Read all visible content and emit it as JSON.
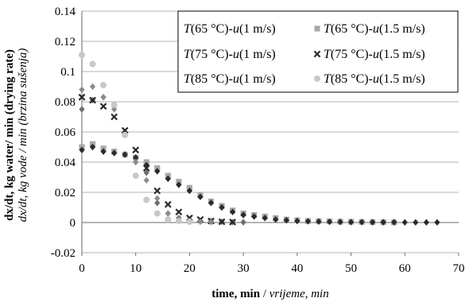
{
  "chart_data": {
    "type": "scatter",
    "title": "",
    "xlabel_bold": "time, min",
    "xlabel_sep": " / ",
    "xlabel_italic": "vrijeme, min",
    "ylabel_bold": "dx/dt, kg water/ min (drying rate)",
    "ylabel_italic": "dx/dt, kg vode / min (brzina sušenja)",
    "xlim": [
      0,
      70
    ],
    "ylim": [
      -0.02,
      0.14
    ],
    "xticks": [
      0,
      10,
      20,
      30,
      40,
      50,
      60,
      70
    ],
    "xtick_labels": [
      "0",
      "10",
      "20",
      "30",
      "40",
      "50",
      "60",
      "70"
    ],
    "yticks": [
      -0.02,
      0,
      0.02,
      0.04,
      0.06,
      0.08,
      0.1,
      0.12,
      0.14
    ],
    "ytick_labels": [
      "-0.02",
      "0",
      "0.02",
      "0.04",
      "0.06",
      "0.08",
      "0.1",
      "0.12",
      "0.14"
    ],
    "grid": "horizontal",
    "legend_position": "top-right",
    "series": [
      {
        "name": "T(65 °C)-u(1 m/s)",
        "name_T": "T",
        "name_mid": "(65 °C)-",
        "name_u": "u",
        "name_end": "(1 m/s)",
        "marker": "diamond",
        "color": "#6e6e6e",
        "x": [
          0,
          2,
          4,
          6,
          8,
          10,
          12,
          14,
          16,
          18,
          20,
          22,
          24,
          26,
          28,
          30
        ],
        "y": [
          0.075,
          0.081,
          0.083,
          0.077,
          0.06,
          0.043,
          0.033,
          0.013,
          0.006,
          0.003,
          0.002,
          0.001,
          0.001,
          0.0005,
          0.0003,
          0.0002
        ]
      },
      {
        "name": "T(65 °C)-u(1.5 m/s)",
        "name_T": "T",
        "name_mid": "(65 °C)-",
        "name_u": "u",
        "name_end": "(1.5 m/s)",
        "marker": "square",
        "color": "#a9a9a9",
        "x": [
          0,
          2,
          4,
          6,
          8,
          10,
          12,
          14,
          16,
          18,
          20,
          22,
          24,
          26,
          28,
          30,
          32,
          34,
          36,
          38,
          40,
          42,
          44,
          46,
          48,
          50,
          52,
          54,
          56,
          58
        ],
        "y": [
          0.05,
          0.052,
          0.049,
          0.047,
          0.045,
          0.043,
          0.04,
          0.036,
          0.031,
          0.027,
          0.023,
          0.018,
          0.014,
          0.011,
          0.008,
          0.006,
          0.005,
          0.004,
          0.003,
          0.002,
          0.0015,
          0.001,
          0.001,
          0.0008,
          0.0006,
          0.0005,
          0.0004,
          0.0003,
          0.0002,
          0.0001
        ]
      },
      {
        "name": "T(75 °C)-u(1 m/s)",
        "name_T": "T",
        "name_mid": "(75 °C)-",
        "name_u": "u",
        "name_end": "(1 m/s)",
        "marker": "diamond",
        "color": "#2a2a2a",
        "x": [
          0,
          2,
          4,
          6,
          8,
          10,
          12,
          14,
          16,
          18,
          20,
          22,
          24,
          26,
          28,
          30,
          32,
          34,
          36,
          38,
          40,
          42,
          44,
          46,
          48,
          50,
          52,
          54,
          56,
          58,
          60,
          62,
          64,
          66
        ],
        "y": [
          0.048,
          0.05,
          0.047,
          0.046,
          0.045,
          0.043,
          0.038,
          0.034,
          0.029,
          0.025,
          0.021,
          0.017,
          0.013,
          0.01,
          0.007,
          0.005,
          0.004,
          0.003,
          0.002,
          0.0015,
          0.001,
          0.0008,
          0.0006,
          0.0005,
          0.0004,
          0.0003,
          0.0003,
          0.0002,
          0.0002,
          0.0002,
          0.0001,
          0.0001,
          0.0001,
          0.0001
        ]
      },
      {
        "name": "T(75 °C)-u(1.5 m/s)",
        "name_T": "T",
        "name_mid": "(75 °C)-",
        "name_u": "u",
        "name_end": "(1.5 m/s)",
        "marker": "cross",
        "color": "#2a2a2a",
        "x": [
          0,
          2,
          4,
          6,
          8,
          10,
          12,
          14,
          16,
          18,
          20,
          22,
          24,
          26,
          28
        ],
        "y": [
          0.083,
          0.081,
          0.077,
          0.07,
          0.061,
          0.048,
          0.036,
          0.021,
          0.012,
          0.007,
          0.003,
          0.002,
          0.001,
          0.0005,
          0.0003
        ]
      },
      {
        "name": "T(85 °C)-u(1 m/s)",
        "name_T": "T",
        "name_mid": "(85 °C)-",
        "name_u": "u",
        "name_end": "(1 m/s)",
        "marker": "diamond",
        "color": "#8c8c8c",
        "x": [
          0,
          2,
          4,
          6,
          8,
          10,
          12,
          14,
          16,
          18,
          20,
          22,
          24
        ],
        "y": [
          0.088,
          0.09,
          0.083,
          0.075,
          0.058,
          0.04,
          0.028,
          0.016,
          0.006,
          0.002,
          0.001,
          0.0005,
          0.0003
        ]
      },
      {
        "name": "T(85 °C)-u(1.5 m/s)",
        "name_T": "T",
        "name_mid": "(85 °C)-",
        "name_u": "u",
        "name_end": "(1.5 m/s)",
        "marker": "circle",
        "color": "#c8c8c8",
        "x": [
          0,
          2,
          4,
          6,
          8,
          10,
          12,
          14,
          16,
          18,
          20
        ],
        "y": [
          0.111,
          0.105,
          0.091,
          0.078,
          0.058,
          0.031,
          0.015,
          0.006,
          0.002,
          0.001,
          0.0005
        ]
      }
    ]
  }
}
